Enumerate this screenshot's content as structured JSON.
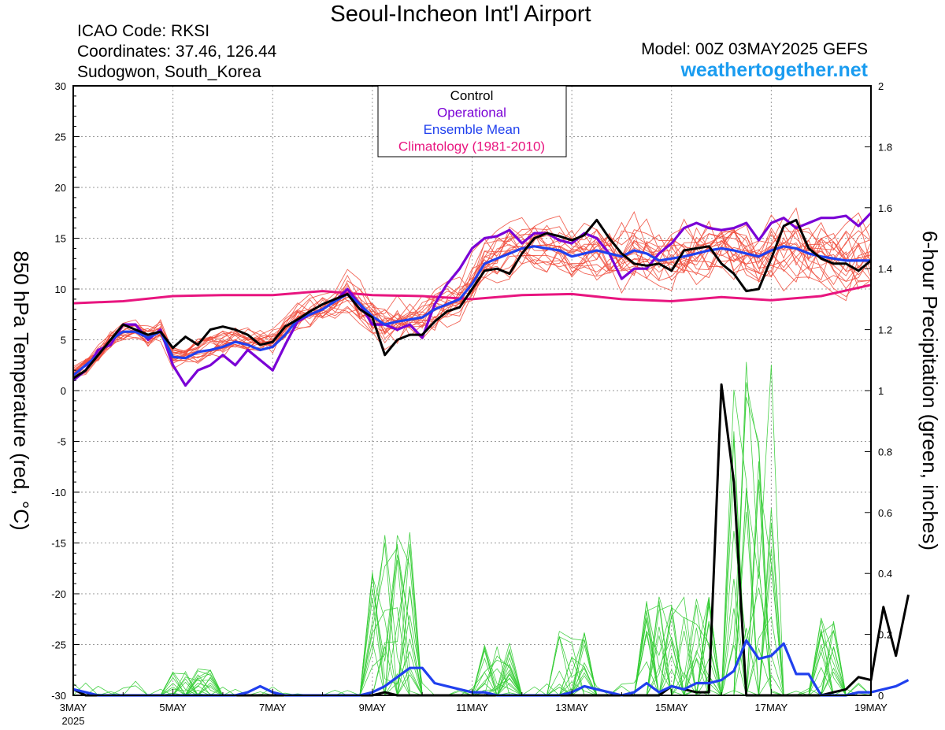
{
  "header": {
    "title": "Seoul-Incheon Int'l Airport",
    "icao": "ICAO Code: RKSI",
    "coordinates": "Coordinates: 37.46, 126.44",
    "region": "Sudogwon, South_Korea",
    "model": "Model: 00Z 03MAY2025 GEFS",
    "site": "weathertogether.net"
  },
  "colors": {
    "control": "#000000",
    "operational": "#7a00d6",
    "ensemble_mean": "#2040ee",
    "climatology": "#e8157f",
    "members_temp": "#f04a3a",
    "members_precip": "#33cc33",
    "site": "#1a9cf0"
  },
  "chart_data": {
    "type": "line",
    "left_axis_label": "850 hPa Temperature (red, °C)",
    "right_axis_label": "6-hour Precipitation (green, inches)",
    "y_left_ticks": [
      "30",
      "25",
      "20",
      "15",
      "10",
      "5",
      "0",
      "-5",
      "-10",
      "-15",
      "-20",
      "-25",
      "-30"
    ],
    "y_right_ticks": [
      "2",
      "1.8",
      "1.6",
      "1.4",
      "1.2",
      "1",
      "0.8",
      "0.6",
      "0.4",
      "0.2",
      "0"
    ],
    "x_ticks": [
      "3MAY",
      "5MAY",
      "7MAY",
      "9MAY",
      "11MAY",
      "13MAY",
      "15MAY",
      "17MAY",
      "19MAY"
    ],
    "x_year": "2025",
    "ylim_left": [
      -30,
      30
    ],
    "ylim_right": [
      0,
      2
    ],
    "x_range_days": [
      0,
      16
    ],
    "grid": true,
    "legend_position": "top-center",
    "legend": [
      "Control",
      "Operational",
      "Ensemble Mean",
      "Climatology (1981-2010)"
    ],
    "series": [
      {
        "name": "Control",
        "axis": "left",
        "values": [
          1.2,
          2.0,
          3.5,
          5.0,
          6.5,
          6.0,
          5.5,
          5.8,
          4.2,
          5.3,
          4.5,
          6.0,
          6.3,
          6.0,
          5.5,
          4.5,
          4.8,
          6.3,
          7.0,
          7.8,
          8.5,
          9.0,
          9.5,
          8.0,
          7.2,
          3.5,
          5.0,
          5.5,
          5.5,
          6.8,
          7.8,
          8.2,
          10.0,
          11.8,
          12.0,
          11.5,
          13.5,
          15.0,
          15.5,
          15.2,
          14.8,
          15.3,
          16.8,
          15.0,
          13.5,
          12.5,
          12.3,
          12.5,
          11.8,
          13.8,
          14.0,
          14.2,
          12.5,
          11.5,
          9.8,
          10.0,
          13.0,
          16.2,
          16.8,
          14.0,
          13.0,
          12.5,
          12.5,
          11.8,
          12.8
        ]
      },
      {
        "name": "Operational",
        "axis": "left",
        "values": [
          1.0,
          2.0,
          4.0,
          4.5,
          6.5,
          6.5,
          5.0,
          6.0,
          2.5,
          0.5,
          2.0,
          2.5,
          3.5,
          2.5,
          4.0,
          3.0,
          2.0,
          4.5,
          6.8,
          7.5,
          8.0,
          8.8,
          10.0,
          8.5,
          6.5,
          6.5,
          6.0,
          6.5,
          5.2,
          8.5,
          10.5,
          12.0,
          14.0,
          15.0,
          15.2,
          15.8,
          14.5,
          15.5,
          15.5,
          14.8,
          14.5,
          15.5,
          15.0,
          13.5,
          11.0,
          12.0,
          12.0,
          13.5,
          14.5,
          16.0,
          16.5,
          16.0,
          15.8,
          16.0,
          16.5,
          14.8,
          16.5,
          17.0,
          16.0,
          16.5,
          17.0,
          17.0,
          17.2,
          16.2,
          17.5
        ]
      },
      {
        "name": "Ensemble Mean",
        "axis": "left",
        "values": [
          1.5,
          2.5,
          3.5,
          5.0,
          5.8,
          5.8,
          5.2,
          5.8,
          3.3,
          3.2,
          3.8,
          4.0,
          4.3,
          4.8,
          4.5,
          4.0,
          4.3,
          5.5,
          7.0,
          7.5,
          8.0,
          8.8,
          9.5,
          8.5,
          7.3,
          6.5,
          6.8,
          7.0,
          7.2,
          8.0,
          8.5,
          9.0,
          10.5,
          12.5,
          13.0,
          13.5,
          14.0,
          14.2,
          14.0,
          13.8,
          13.2,
          13.5,
          13.8,
          13.5,
          13.2,
          13.8,
          13.5,
          12.8,
          13.0,
          13.2,
          13.5,
          13.8,
          14.0,
          13.8,
          13.5,
          13.2,
          13.8,
          14.2,
          14.0,
          13.5,
          13.2,
          13.0,
          12.8,
          12.8,
          12.8
        ]
      },
      {
        "name": "Climatology (1981-2010)",
        "axis": "left",
        "x": [
          0,
          1,
          2,
          3,
          4,
          5,
          6,
          7,
          8,
          9,
          10,
          11,
          12,
          13,
          14,
          15,
          16
        ],
        "values": [
          8.6,
          8.8,
          9.3,
          9.4,
          9.4,
          9.8,
          9.4,
          9.3,
          9.0,
          9.4,
          9.5,
          9.0,
          8.8,
          9.2,
          8.9,
          9.3,
          10.4
        ]
      },
      {
        "name": "Control",
        "axis": "right",
        "values": [
          0.02,
          0,
          0,
          0,
          0,
          0,
          0,
          0,
          0,
          0,
          0,
          0,
          0,
          0,
          0,
          0,
          0,
          0,
          0,
          0,
          0,
          0,
          0,
          0,
          0,
          0.01,
          0,
          0,
          0,
          0,
          0,
          0,
          0,
          0,
          0,
          0,
          0,
          0,
          0,
          0,
          0,
          0,
          0,
          0,
          0,
          0,
          0,
          0,
          0.03,
          0.02,
          0.01,
          0.01,
          1.02,
          0.7,
          0,
          0,
          0,
          0,
          0,
          0,
          0,
          0.01,
          0.02,
          0.06,
          0.05,
          0.29,
          0.13,
          0.33
        ]
      },
      {
        "name": "Ensemble Mean",
        "axis": "right",
        "values": [
          0.02,
          0.01,
          0,
          0,
          0,
          0,
          0,
          0,
          0,
          0,
          0,
          0,
          0,
          0,
          0.01,
          0.03,
          0.01,
          0,
          0,
          0,
          0,
          0,
          0,
          0,
          0.01,
          0.03,
          0.06,
          0.09,
          0.09,
          0.04,
          0.03,
          0.02,
          0.01,
          0.01,
          0,
          0,
          0,
          0,
          0,
          0,
          0.01,
          0.03,
          0.02,
          0.01,
          0,
          0.01,
          0.04,
          0.01,
          0.03,
          0.02,
          0.04,
          0.04,
          0.05,
          0.08,
          0.18,
          0.12,
          0.13,
          0.17,
          0.07,
          0.07,
          0,
          0,
          0,
          0.01,
          0.01,
          0.02,
          0.03,
          0.05
        ]
      }
    ]
  }
}
